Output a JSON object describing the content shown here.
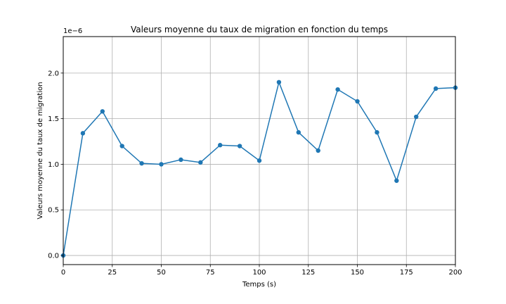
{
  "chart_data": {
    "type": "line",
    "title": "Valeurs moyenne du taux de migration en fonction du temps",
    "xlabel": "Temps (s)",
    "ylabel": "Valeurs moyenne du taux de migration",
    "offset_label": "1e−6",
    "xlim": [
      0,
      200
    ],
    "ylim": [
      -0.1,
      2.4
    ],
    "y_scale_factor": 1e-06,
    "xticks": [
      0,
      25,
      50,
      75,
      100,
      125,
      150,
      175,
      200
    ],
    "yticks": [
      0.0,
      0.5,
      1.0,
      1.5,
      2.0
    ],
    "xtick_labels": [
      "0",
      "25",
      "50",
      "75",
      "100",
      "125",
      "150",
      "175",
      "200"
    ],
    "ytick_labels": [
      "0.0",
      "0.5",
      "1.0",
      "1.5",
      "2.0"
    ],
    "grid": true,
    "line_color": "#1f77b4",
    "series": [
      {
        "x": [
          0,
          10,
          20,
          30,
          40,
          50,
          60,
          70,
          80,
          90,
          100,
          110,
          120,
          130,
          140,
          150,
          160,
          170,
          180,
          190,
          200
        ],
        "values": [
          0.0,
          1.34,
          1.58,
          1.2,
          1.01,
          1.0,
          1.05,
          1.02,
          1.21,
          1.2,
          1.04,
          1.9,
          1.35,
          1.15,
          1.82,
          1.69,
          1.35,
          0.82,
          1.52,
          1.83,
          1.84
        ]
      }
    ]
  }
}
